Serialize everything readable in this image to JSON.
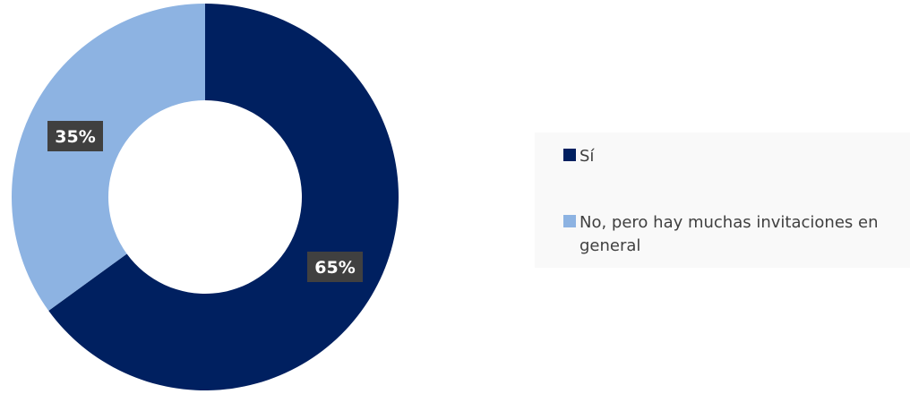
{
  "chart_data": {
    "type": "pie",
    "variant": "donut",
    "categories": [
      "Sí",
      "No, pero hay muchas invitaciones en general"
    ],
    "values": [
      65,
      35
    ],
    "colors": [
      "#002060",
      "#8DB3E2"
    ],
    "data_labels": [
      "65%",
      "35%"
    ],
    "legend_position": "right"
  }
}
